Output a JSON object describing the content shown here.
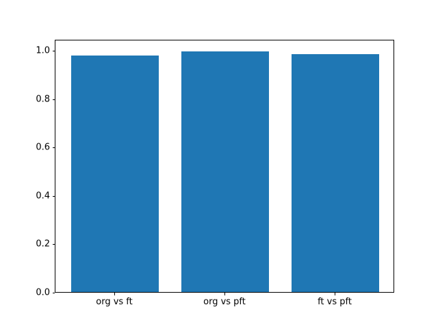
{
  "figure": {
    "background_color": "#ffffff",
    "spine_color": "#000000",
    "text_color": "#000000"
  },
  "chart_data": {
    "type": "bar",
    "categories": [
      "org vs ft",
      "org vs pft",
      "ft vs pft"
    ],
    "values": [
      0.976,
      0.995,
      0.983
    ],
    "bar_color": "#1f77b4",
    "title": "",
    "xlabel": "",
    "ylabel": "",
    "ylim": [
      0,
      1.045
    ],
    "yticks": [
      0.0,
      0.2,
      0.4,
      0.6,
      0.8,
      1.0
    ],
    "ytick_labels": [
      "0.0",
      "0.2",
      "0.4",
      "0.6",
      "0.8",
      "1.0"
    ],
    "bar_width_fraction": 0.8,
    "x_margin_fraction": 0.05,
    "grid": false,
    "legend": null
  }
}
